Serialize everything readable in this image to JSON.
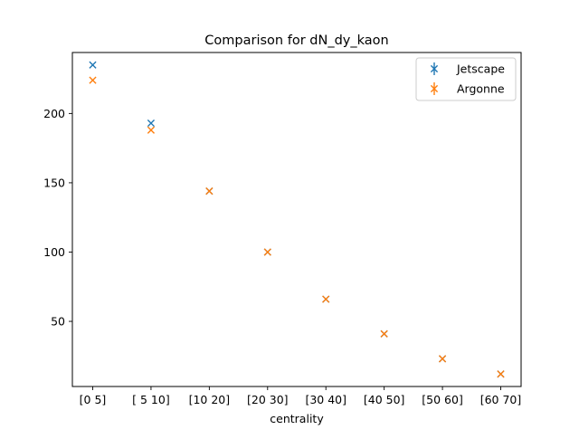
{
  "chart_data": {
    "type": "scatter",
    "title": "Comparison for dN_dy_kaon",
    "xlabel": "centrality",
    "ylabel": "",
    "categories": [
      "[0 5]",
      "[ 5 10]",
      "[10 20]",
      "[20 30]",
      "[30 40]",
      "[40 50]",
      "[50 60]",
      "[60 70]"
    ],
    "yticks": [
      50,
      100,
      150,
      200
    ],
    "ylim": [
      3,
      244
    ],
    "grid": false,
    "legend_position": "top-right",
    "marker": "x",
    "series": [
      {
        "name": "Jetscape",
        "color": "#1f77b4",
        "values": [
          235,
          193,
          144,
          100,
          66,
          41,
          23,
          12
        ]
      },
      {
        "name": "Argonne",
        "color": "#ff7f0e",
        "values": [
          224,
          188,
          144,
          100,
          66,
          41,
          23,
          12
        ]
      }
    ]
  }
}
